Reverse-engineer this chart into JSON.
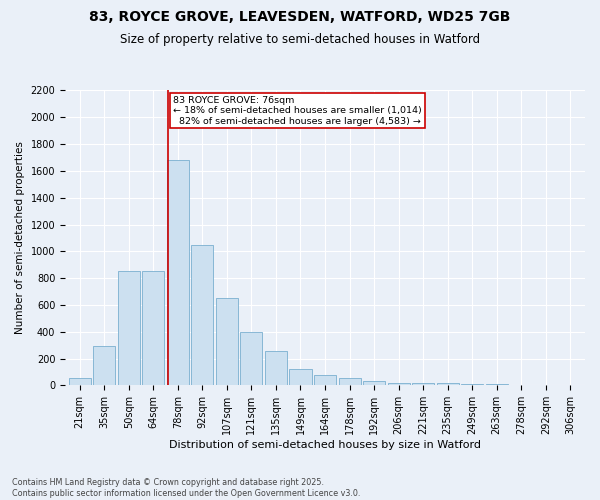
{
  "title_line1": "83, ROYCE GROVE, LEAVESDEN, WATFORD, WD25 7GB",
  "title_line2": "Size of property relative to semi-detached houses in Watford",
  "xlabel": "Distribution of semi-detached houses by size in Watford",
  "ylabel": "Number of semi-detached properties",
  "footnote": "Contains HM Land Registry data © Crown copyright and database right 2025.\nContains public sector information licensed under the Open Government Licence v3.0.",
  "categories": [
    "21sqm",
    "35sqm",
    "50sqm",
    "64sqm",
    "78sqm",
    "92sqm",
    "107sqm",
    "121sqm",
    "135sqm",
    "149sqm",
    "164sqm",
    "178sqm",
    "192sqm",
    "206sqm",
    "221sqm",
    "235sqm",
    "249sqm",
    "263sqm",
    "278sqm",
    "292sqm",
    "306sqm"
  ],
  "values": [
    55,
    290,
    855,
    850,
    1680,
    1050,
    650,
    400,
    255,
    120,
    75,
    55,
    30,
    20,
    20,
    20,
    10,
    10,
    5,
    5,
    5
  ],
  "bar_color": "#cce0f0",
  "bar_edgecolor": "#7aafd0",
  "annotation_box_color": "#cc0000",
  "vline_color": "#cc0000",
  "vline_x_index": 4,
  "property_label": "83 ROYCE GROVE: 76sqm",
  "pct_smaller": "18% of semi-detached houses are smaller (1,014)",
  "pct_larger": "82% of semi-detached houses are larger (4,583)",
  "ylim": [
    0,
    2200
  ],
  "yticks": [
    0,
    200,
    400,
    600,
    800,
    1000,
    1200,
    1400,
    1600,
    1800,
    2000,
    2200
  ],
  "background_color": "#eaf0f8",
  "grid_color": "#ffffff",
  "title_fontsize": 10,
  "subtitle_fontsize": 8.5,
  "tick_fontsize": 7,
  "ylabel_fontsize": 7.5,
  "xlabel_fontsize": 8
}
